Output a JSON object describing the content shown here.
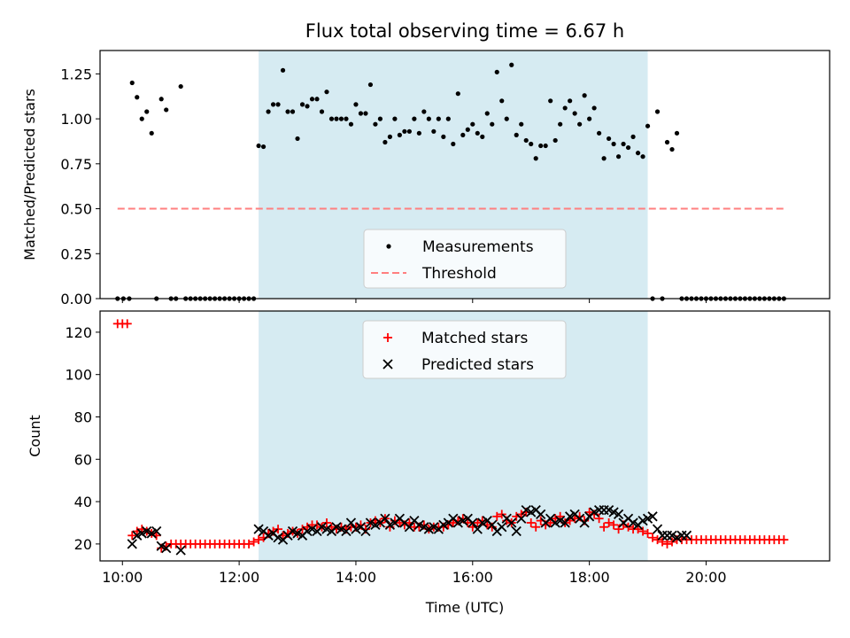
{
  "chart_data": [
    {
      "type": "scatter",
      "title": "Flux total observing time = 6.67 h",
      "xlabel": "",
      "ylabel": "Matched/Predicted stars",
      "xlim": [
        "09:37",
        "22:07"
      ],
      "ylim": [
        0,
        1.38
      ],
      "x_ticks": [
        "10:00",
        "12:00",
        "14:00",
        "16:00",
        "18:00",
        "20:00"
      ],
      "y_ticks": [
        "0.00",
        "0.25",
        "0.50",
        "0.75",
        "1.00",
        "1.25"
      ],
      "observing_window": [
        "12:20",
        "19:00"
      ],
      "legend": {
        "location": "lower center",
        "entries": [
          "Measurements",
          "Threshold"
        ]
      },
      "series": [
        {
          "name": "Measurements",
          "marker": "dot",
          "color": "#000000",
          "x": [
            "09:55",
            "10:01",
            "10:07",
            "10:10",
            "10:15",
            "10:20",
            "10:25",
            "10:30",
            "10:35",
            "10:40",
            "10:45",
            "10:50",
            "10:55",
            "11:00",
            "11:05",
            "11:10",
            "11:15",
            "11:20",
            "11:25",
            "11:30",
            "11:35",
            "11:40",
            "11:45",
            "11:50",
            "11:55",
            "12:00",
            "12:05",
            "12:10",
            "12:15",
            "12:20",
            "12:25",
            "12:30",
            "12:35",
            "12:40",
            "12:45",
            "12:50",
            "12:55",
            "13:00",
            "13:05",
            "13:10",
            "13:15",
            "13:20",
            "13:25",
            "13:30",
            "13:35",
            "13:40",
            "13:45",
            "13:50",
            "13:55",
            "14:00",
            "14:05",
            "14:10",
            "14:15",
            "14:20",
            "14:25",
            "14:30",
            "14:35",
            "14:40",
            "14:45",
            "14:50",
            "14:55",
            "15:00",
            "15:05",
            "15:10",
            "15:15",
            "15:20",
            "15:25",
            "15:30",
            "15:35",
            "15:40",
            "15:45",
            "15:50",
            "15:55",
            "16:00",
            "16:05",
            "16:10",
            "16:15",
            "16:20",
            "16:25",
            "16:30",
            "16:35",
            "16:40",
            "16:45",
            "16:50",
            "16:55",
            "17:00",
            "17:05",
            "17:10",
            "17:15",
            "17:20",
            "17:25",
            "17:30",
            "17:35",
            "17:40",
            "17:45",
            "17:50",
            "17:55",
            "18:00",
            "18:05",
            "18:10",
            "18:15",
            "18:20",
            "18:25",
            "18:30",
            "18:35",
            "18:40",
            "18:45",
            "18:50",
            "18:55",
            "19:00",
            "19:05",
            "19:10",
            "19:15",
            "19:20",
            "19:25",
            "19:30",
            "19:35",
            "19:40",
            "19:45",
            "19:50",
            "19:55",
            "20:00",
            "20:05",
            "20:10",
            "20:15",
            "20:20",
            "20:25",
            "20:30",
            "20:35",
            "20:40",
            "20:45",
            "20:50",
            "20:55",
            "21:00",
            "21:05",
            "21:10",
            "21:15",
            "21:20"
          ],
          "y": [
            0,
            0,
            0,
            1.2,
            1.12,
            1.0,
            1.04,
            0.92,
            0,
            1.11,
            1.05,
            0,
            0,
            1.18,
            0,
            0,
            0,
            0,
            0,
            0,
            0,
            0,
            0,
            0,
            0,
            0,
            0,
            0,
            0,
            0.85,
            0.845,
            1.04,
            1.08,
            1.08,
            1.27,
            1.04,
            1.04,
            0.89,
            1.08,
            1.07,
            1.11,
            1.11,
            1.04,
            1.15,
            1.0,
            1.0,
            1.0,
            1.0,
            0.97,
            1.08,
            1.03,
            1.03,
            1.19,
            0.97,
            1.0,
            0.87,
            0.9,
            1.0,
            0.91,
            0.93,
            0.93,
            1.0,
            0.92,
            1.04,
            1.0,
            0.93,
            1.0,
            0.9,
            1.0,
            0.86,
            1.14,
            0.91,
            0.94,
            0.97,
            0.92,
            0.9,
            1.03,
            0.97,
            1.26,
            1.1,
            1.0,
            1.3,
            0.91,
            0.97,
            0.88,
            0.86,
            0.78,
            0.85,
            0.85,
            1.1,
            0.88,
            0.97,
            1.06,
            1.1,
            1.03,
            0.97,
            1.13,
            1.0,
            1.06,
            0.92,
            0.78,
            0.89,
            0.86,
            0.79,
            0.86,
            0.84,
            0.9,
            0.81,
            0.79,
            0.96,
            0,
            1.04,
            0,
            0.87,
            0.83,
            0.92,
            0,
            0,
            0,
            0,
            0,
            0,
            0,
            0,
            0,
            0,
            0,
            0,
            0,
            0,
            0,
            0,
            0,
            0,
            0,
            0,
            0,
            0
          ]
        },
        {
          "name": "Threshold",
          "marker": "dashed-line",
          "color": "#ff7f7f",
          "x": [
            "09:55",
            "21:20"
          ],
          "y": [
            0.5,
            0.5
          ]
        }
      ]
    },
    {
      "type": "scatter",
      "title": "",
      "xlabel": "Time (UTC)",
      "ylabel": "Count",
      "xlim": [
        "09:37",
        "22:07"
      ],
      "ylim": [
        12,
        130
      ],
      "x_ticks": [
        "10:00",
        "12:00",
        "14:00",
        "16:00",
        "18:00",
        "20:00"
      ],
      "y_ticks": [
        "20",
        "40",
        "60",
        "80",
        "100",
        "120"
      ],
      "observing_window": [
        "12:20",
        "19:00"
      ],
      "legend": {
        "location": "upper center",
        "entries": [
          "Matched stars",
          "Predicted stars"
        ]
      },
      "series": [
        {
          "name": "Matched stars",
          "marker": "plus",
          "color": "#ff0000",
          "x": [
            "09:55",
            "10:00",
            "10:05",
            "10:10",
            "10:15",
            "10:20",
            "10:25",
            "10:30",
            "10:35",
            "10:40",
            "10:45",
            "10:50",
            "10:55",
            "11:00",
            "11:05",
            "11:10",
            "11:15",
            "11:20",
            "11:25",
            "11:30",
            "11:35",
            "11:40",
            "11:45",
            "11:50",
            "11:55",
            "12:00",
            "12:05",
            "12:10",
            "12:15",
            "12:20",
            "12:25",
            "12:30",
            "12:35",
            "12:40",
            "12:45",
            "12:50",
            "12:55",
            "13:00",
            "13:05",
            "13:10",
            "13:15",
            "13:20",
            "13:25",
            "13:30",
            "13:35",
            "13:40",
            "13:45",
            "13:50",
            "13:55",
            "14:00",
            "14:05",
            "14:10",
            "14:15",
            "14:20",
            "14:25",
            "14:30",
            "14:35",
            "14:40",
            "14:45",
            "14:50",
            "14:55",
            "15:00",
            "15:05",
            "15:10",
            "15:15",
            "15:20",
            "15:25",
            "15:30",
            "15:35",
            "15:40",
            "15:45",
            "15:50",
            "15:55",
            "16:00",
            "16:05",
            "16:10",
            "16:15",
            "16:20",
            "16:25",
            "16:30",
            "16:35",
            "16:40",
            "16:45",
            "16:50",
            "16:55",
            "17:00",
            "17:05",
            "17:10",
            "17:15",
            "17:20",
            "17:25",
            "17:30",
            "17:35",
            "17:40",
            "17:45",
            "17:50",
            "17:55",
            "18:00",
            "18:05",
            "18:10",
            "18:15",
            "18:20",
            "18:25",
            "18:30",
            "18:35",
            "18:40",
            "18:45",
            "18:50",
            "18:55",
            "19:00",
            "19:05",
            "19:10",
            "19:15",
            "19:20",
            "19:25",
            "19:30",
            "19:35",
            "19:40",
            "19:45",
            "19:50",
            "19:55",
            "20:00",
            "20:05",
            "20:10",
            "20:15",
            "20:20",
            "20:25",
            "20:30",
            "20:35",
            "20:40",
            "20:45",
            "20:50",
            "20:55",
            "21:00",
            "21:05",
            "21:10",
            "21:15",
            "21:20"
          ],
          "y": [
            124,
            124,
            124,
            24,
            26,
            27,
            26,
            25,
            24,
            18,
            19,
            20,
            20,
            20,
            20,
            20,
            20,
            20,
            20,
            20,
            20,
            20,
            20,
            20,
            20,
            20,
            20,
            20,
            21,
            22,
            23,
            25,
            26,
            27,
            24,
            25,
            26,
            25,
            27,
            28,
            29,
            29,
            28,
            30,
            28,
            27,
            28,
            27,
            28,
            28,
            29,
            27,
            30,
            31,
            30,
            32,
            28,
            31,
            30,
            29,
            30,
            28,
            28,
            29,
            27,
            28,
            28,
            28,
            29,
            30,
            31,
            32,
            30,
            28,
            30,
            31,
            29,
            28,
            33,
            34,
            31,
            30,
            33,
            34,
            35,
            30,
            28,
            31,
            29,
            30,
            32,
            33,
            30,
            31,
            32,
            33,
            31,
            35,
            34,
            32,
            28,
            30,
            29,
            27,
            29,
            28,
            27,
            27,
            26,
            25,
            23,
            22,
            21,
            20,
            21,
            22,
            22,
            22,
            22,
            22,
            22,
            22,
            22,
            22,
            22,
            22,
            22,
            22,
            22,
            22,
            22,
            22,
            22,
            22,
            22,
            22,
            22,
            22
          ]
        },
        {
          "name": "Predicted stars",
          "marker": "x",
          "color": "#000000",
          "x": [
            "10:10",
            "10:15",
            "10:20",
            "10:25",
            "10:30",
            "10:35",
            "10:40",
            "10:45",
            "11:00",
            "12:20",
            "12:25",
            "12:30",
            "12:35",
            "12:40",
            "12:45",
            "12:50",
            "12:55",
            "13:00",
            "13:05",
            "13:10",
            "13:15",
            "13:20",
            "13:25",
            "13:30",
            "13:35",
            "13:40",
            "13:45",
            "13:50",
            "13:55",
            "14:00",
            "14:05",
            "14:10",
            "14:15",
            "14:20",
            "14:25",
            "14:30",
            "14:35",
            "14:40",
            "14:45",
            "14:50",
            "14:55",
            "15:00",
            "15:05",
            "15:10",
            "15:15",
            "15:20",
            "15:25",
            "15:30",
            "15:35",
            "15:40",
            "15:45",
            "15:50",
            "15:55",
            "16:00",
            "16:05",
            "16:10",
            "16:15",
            "16:20",
            "16:25",
            "16:30",
            "16:35",
            "16:40",
            "16:45",
            "16:50",
            "16:55",
            "17:00",
            "17:05",
            "17:10",
            "17:15",
            "17:20",
            "17:25",
            "17:30",
            "17:35",
            "17:40",
            "17:45",
            "17:50",
            "17:55",
            "18:00",
            "18:05",
            "18:10",
            "18:15",
            "18:20",
            "18:25",
            "18:30",
            "18:35",
            "18:40",
            "18:45",
            "18:50",
            "18:55",
            "19:00",
            "19:05",
            "19:10",
            "19:15",
            "19:20",
            "19:25",
            "19:30",
            "19:35",
            "19:40"
          ],
          "y": [
            20,
            24,
            25,
            26,
            25,
            26,
            19,
            18,
            17,
            27,
            26,
            24,
            25,
            23,
            22,
            24,
            26,
            25,
            24,
            26,
            27,
            26,
            28,
            27,
            26,
            28,
            27,
            26,
            30,
            27,
            28,
            26,
            30,
            29,
            30,
            32,
            29,
            30,
            32,
            30,
            28,
            31,
            29,
            28,
            27,
            28,
            27,
            29,
            30,
            32,
            30,
            31,
            32,
            30,
            27,
            30,
            31,
            29,
            26,
            28,
            32,
            30,
            26,
            32,
            36,
            35,
            36,
            34,
            30,
            32,
            30,
            31,
            30,
            33,
            34,
            32,
            30,
            33,
            35,
            36,
            36,
            36,
            35,
            34,
            30,
            32,
            30,
            29,
            31,
            32,
            33,
            27,
            24,
            24,
            24,
            23,
            24,
            24
          ]
        }
      ]
    }
  ]
}
